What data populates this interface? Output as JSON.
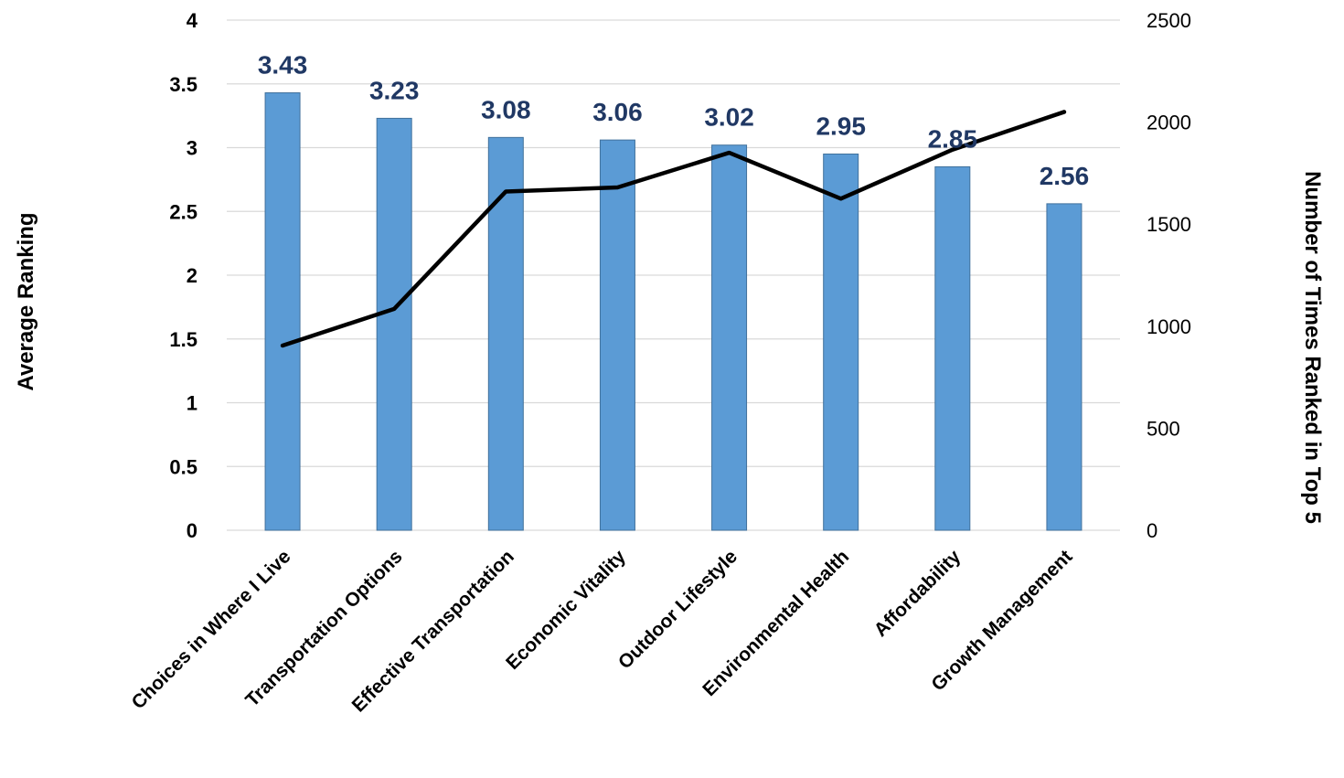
{
  "chart_data": {
    "type": "bar",
    "title": "",
    "categories": [
      "Choices in Where I Live",
      "Transportation Options",
      "Effective Transportation",
      "Economic Vitality",
      "Outdoor Lifestyle",
      "Environmental Health",
      "Affordability",
      "Growth Management"
    ],
    "series": [
      {
        "type": "bar",
        "axis": "left",
        "values": [
          3.43,
          3.23,
          3.08,
          3.06,
          3.02,
          2.95,
          2.85,
          2.56
        ],
        "data_labels": [
          "3.43",
          "3.23",
          "3.08",
          "3.06",
          "3.02",
          "2.95",
          "2.85",
          "2.56"
        ]
      },
      {
        "type": "line",
        "axis": "right",
        "values": [
          905,
          1085,
          1660,
          1680,
          1850,
          1625,
          1865,
          2050
        ]
      }
    ],
    "ylabel": "Average Ranking",
    "y2label": "Number of Times Ranked in Top 5",
    "ylim": [
      0,
      4
    ],
    "y2lim": [
      0,
      2500
    ],
    "yticks": [
      "0",
      "0.5",
      "1",
      "1.5",
      "2",
      "2.5",
      "3",
      "3.5",
      "4"
    ],
    "y2ticks": [
      "0",
      "500",
      "1000",
      "1500",
      "2000",
      "2500"
    ],
    "grid": true,
    "legend": "none",
    "colors": {
      "bar_fill": "#5b9bd5",
      "bar_stroke": "#41719c",
      "line": "#000000",
      "data_label": "#203864",
      "gridline": "#d9d9d9"
    }
  }
}
